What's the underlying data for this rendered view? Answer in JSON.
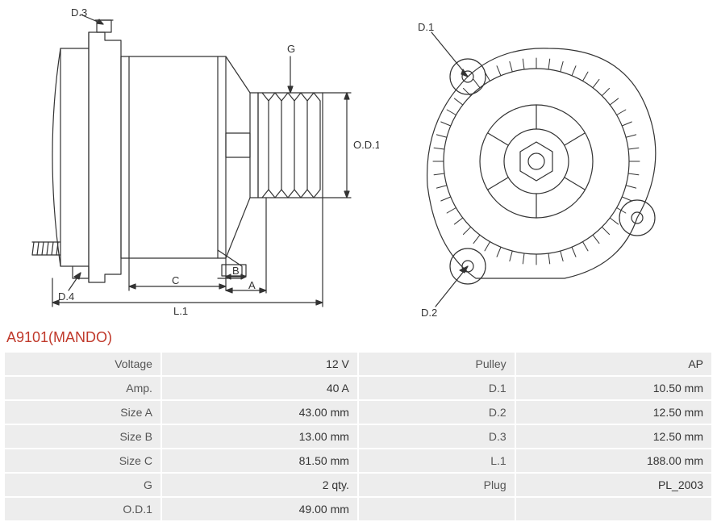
{
  "title": "A9101(MANDO)",
  "diagram": {
    "stroke": "#333333",
    "stroke_width": 1.2,
    "label_color": "#333333",
    "label_fontsize": 13,
    "side_view": {
      "labels": {
        "D3": "D.3",
        "D4": "D.4",
        "G": "G",
        "OD1": "O.D.1",
        "A": "A",
        "B": "B",
        "C": "C",
        "L1": "L.1"
      }
    },
    "front_view": {
      "labels": {
        "D1": "D.1",
        "D2": "D.2"
      }
    }
  },
  "specs": {
    "rows": [
      {
        "l1": "Voltage",
        "v1": "12 V",
        "l2": "Pulley",
        "v2": "AP"
      },
      {
        "l1": "Amp.",
        "v1": "40 A",
        "l2": "D.1",
        "v2": "10.50 mm"
      },
      {
        "l1": "Size A",
        "v1": "43.00 mm",
        "l2": "D.2",
        "v2": "12.50 mm"
      },
      {
        "l1": "Size B",
        "v1": "13.00 mm",
        "l2": "D.3",
        "v2": "12.50 mm"
      },
      {
        "l1": "Size C",
        "v1": "81.50 mm",
        "l2": "L.1",
        "v2": "188.00 mm"
      },
      {
        "l1": "G",
        "v1": "2 qty.",
        "l2": "Plug",
        "v2": "PL_2003"
      },
      {
        "l1": "O.D.1",
        "v1": "49.00 mm",
        "l2": "",
        "v2": ""
      }
    ]
  }
}
